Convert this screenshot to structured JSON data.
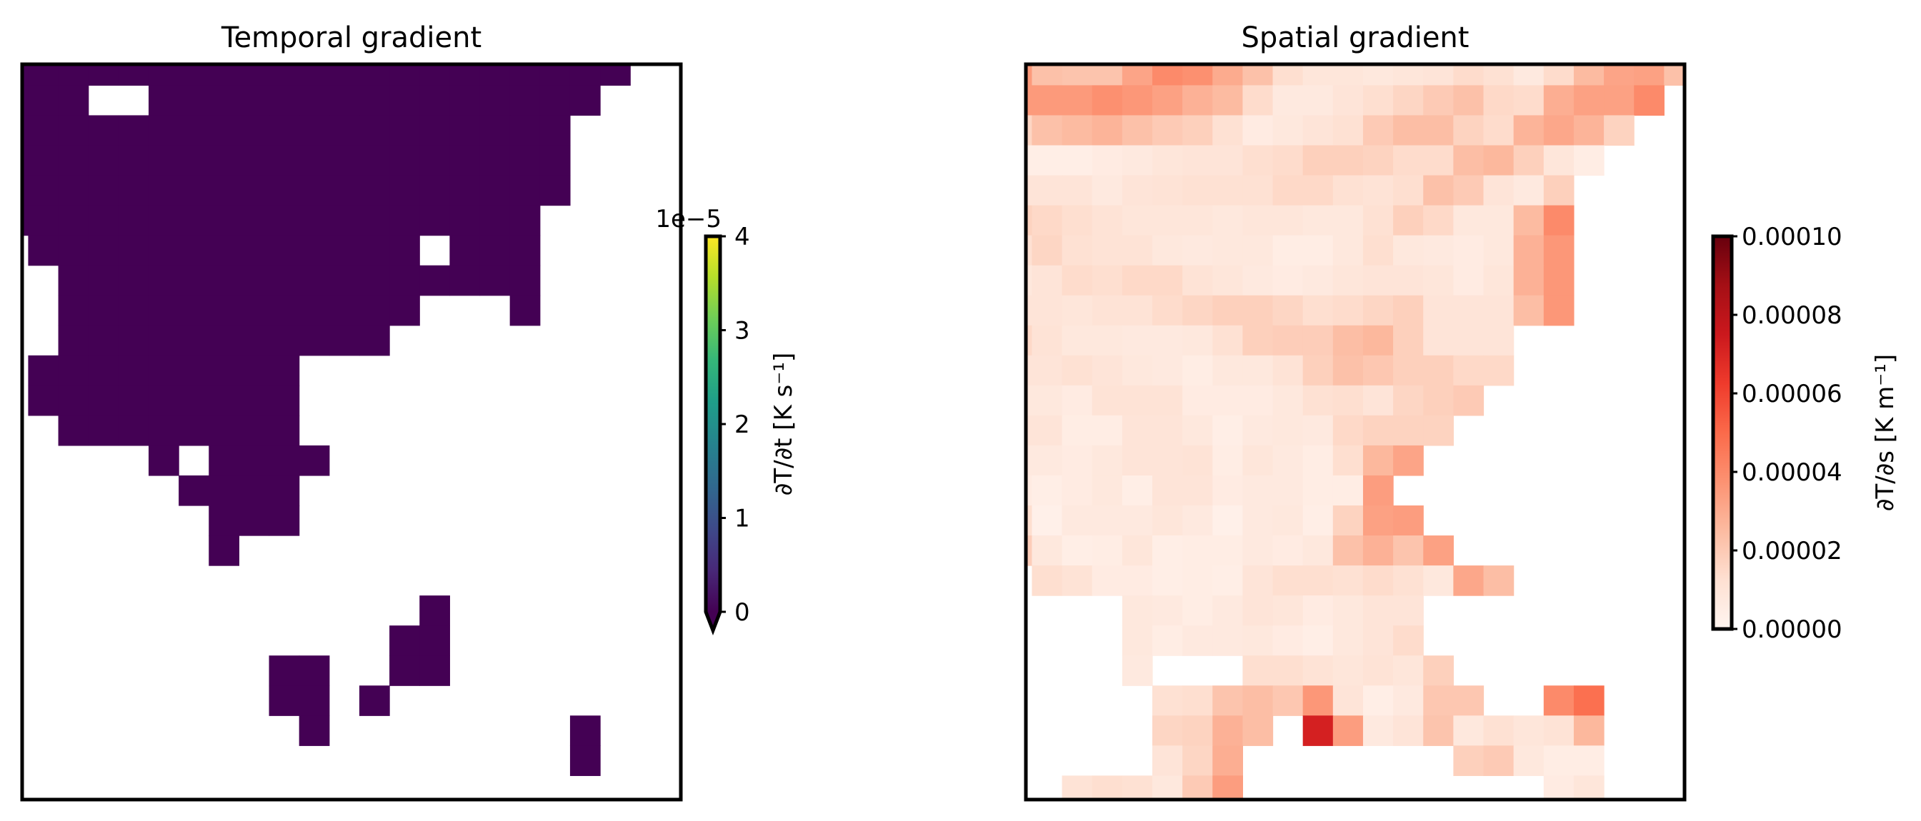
{
  "chart_data": [
    {
      "type": "heatmap",
      "title": "Temporal gradient",
      "colormap": "viridis",
      "colorbar": {
        "label": "∂T/∂t [K s⁻¹]",
        "offset_text": "1e−5",
        "scale": 1e-05,
        "range": [
          0,
          4
        ],
        "ticks": [
          0,
          1,
          2,
          3,
          4
        ],
        "tick_labels": [
          "0",
          "1",
          "2",
          "3",
          "4"
        ],
        "extend": "min"
      },
      "grid_shape": [
        25,
        23
      ],
      "mask_rows": [
        "11111111111111111111100",
        "11100111111111111111000",
        "11111111111111111110000",
        "11111111111111111110000",
        "11111111111111111110000",
        "11111111111111111100000",
        "01111111111111011100000",
        "00111111111111111100000",
        "00111111111111000100000",
        "00111111111110000000000",
        "01111111110000000000000",
        "01111111110000000000000",
        "00111111110000000000000",
        "00000101111000000000000",
        "00000011110000000000000",
        "00000001110000000000000",
        "00000001000000000000000",
        "00000000000000000000000",
        "00000000000000100000000",
        "00000000000001100000000",
        "00000000011001100000000",
        "00000000011010000000000",
        "00000000001000000001000",
        "00000000000000000001000",
        "00000000000000000000000"
      ],
      "cell_value": 0
    },
    {
      "type": "heatmap",
      "title": "Spatial gradient",
      "colormap": "Reds",
      "colorbar": {
        "label": "∂T/∂s [K m⁻¹]",
        "range": [
          0,
          0.0001
        ],
        "ticks": [
          0,
          2e-05,
          4e-05,
          6e-05,
          8e-05,
          0.0001
        ],
        "tick_labels": [
          "0.00000",
          "0.00002",
          "0.00004",
          "0.00006",
          "0.00008",
          "0.00010"
        ]
      },
      "value_scale": 1e-05,
      "grid_shape": [
        25,
        23
      ],
      "values": [
        [
          3.5,
          2.3,
          2.2,
          2.2,
          3.2,
          4.0,
          3.8,
          3.0,
          2.3,
          1.3,
          0.9,
          0.9,
          0.8,
          0.9,
          1.0,
          1.4,
          1.2,
          0.7,
          1.4,
          2.5,
          3.2,
          3.3,
          2.3
        ],
        [
          3.5,
          3.5,
          3.5,
          3.8,
          3.6,
          3.3,
          2.8,
          2.5,
          1.4,
          0.7,
          0.7,
          1.0,
          1.3,
          1.6,
          2.0,
          2.3,
          1.5,
          1.4,
          2.9,
          3.3,
          3.3,
          4.0,
          null
        ],
        [
          1.6,
          2.3,
          2.5,
          2.7,
          2.3,
          2.0,
          1.8,
          1.2,
          0.6,
          0.8,
          1.0,
          1.2,
          2.0,
          2.4,
          2.4,
          1.7,
          1.4,
          2.7,
          3.1,
          2.7,
          1.7,
          null,
          null
        ],
        [
          0.4,
          0.4,
          0.4,
          0.6,
          0.7,
          0.9,
          1.0,
          1.0,
          1.3,
          1.4,
          1.8,
          1.8,
          1.7,
          1.4,
          1.4,
          2.4,
          2.6,
          1.8,
          0.9,
          0.5,
          null,
          null,
          null
        ],
        [
          1.0,
          1.0,
          1.0,
          0.7,
          1.0,
          1.1,
          1.2,
          1.2,
          1.2,
          1.5,
          1.5,
          1.2,
          1.1,
          1.3,
          2.3,
          2.0,
          1.0,
          0.7,
          1.8,
          null,
          null,
          null,
          null
        ],
        [
          1.7,
          1.5,
          1.3,
          1.1,
          0.9,
          0.9,
          0.9,
          0.8,
          0.9,
          0.9,
          0.8,
          0.8,
          1.2,
          1.8,
          1.5,
          0.8,
          0.8,
          2.5,
          4.0,
          null,
          null,
          null,
          null
        ],
        [
          1.2,
          1.6,
          1.2,
          1.1,
          1.1,
          0.8,
          0.7,
          0.8,
          0.8,
          0.5,
          0.5,
          0.8,
          1.3,
          0.8,
          0.7,
          0.6,
          0.8,
          2.8,
          3.6,
          null,
          null,
          null,
          null
        ],
        [
          0.8,
          1.0,
          1.4,
          1.3,
          1.5,
          1.5,
          1.1,
          0.9,
          0.7,
          0.6,
          0.7,
          0.9,
          1.0,
          1.0,
          0.9,
          0.6,
          0.9,
          2.8,
          3.6,
          null,
          null,
          null,
          null
        ],
        [
          1.0,
          1.0,
          0.9,
          1.1,
          1.1,
          1.4,
          1.6,
          1.8,
          1.8,
          1.6,
          1.3,
          1.4,
          1.6,
          1.8,
          1.0,
          1.0,
          1.0,
          2.4,
          3.6,
          null,
          null,
          null,
          null
        ],
        [
          1.5,
          1.1,
          0.8,
          0.8,
          0.7,
          0.7,
          0.8,
          1.2,
          1.8,
          1.9,
          1.9,
          2.4,
          2.6,
          1.8,
          1.0,
          1.0,
          1.0,
          null,
          null,
          null,
          null,
          null,
          null
        ],
        [
          1.0,
          1.0,
          1.2,
          1.0,
          0.8,
          0.7,
          0.5,
          0.8,
          0.8,
          1.1,
          1.8,
          2.3,
          2.1,
          1.8,
          1.8,
          1.5,
          1.5,
          null,
          null,
          null,
          null,
          null,
          null
        ],
        [
          0.8,
          0.8,
          0.6,
          1.1,
          1.1,
          1.1,
          0.6,
          0.6,
          0.6,
          0.8,
          1.2,
          1.3,
          1.0,
          1.6,
          1.8,
          2.0,
          null,
          null,
          null,
          null,
          null,
          null,
          null
        ],
        [
          1.0,
          1.0,
          0.5,
          0.5,
          1.0,
          1.0,
          0.8,
          0.4,
          0.7,
          0.8,
          0.7,
          1.5,
          1.7,
          1.7,
          1.7,
          null,
          null,
          null,
          null,
          null,
          null,
          null,
          null
        ],
        [
          0.7,
          0.7,
          0.6,
          0.8,
          1.0,
          1.0,
          1.1,
          0.5,
          0.9,
          0.7,
          0.5,
          1.3,
          2.6,
          3.2,
          null,
          null,
          null,
          null,
          null,
          null,
          null,
          null,
          null
        ],
        [
          0.6,
          0.4,
          0.6,
          0.8,
          0.4,
          1.0,
          1.0,
          0.6,
          0.7,
          0.7,
          0.5,
          0.5,
          3.4,
          null,
          null,
          null,
          null,
          null,
          null,
          null,
          null,
          null,
          null
        ],
        [
          1.3,
          0.3,
          0.7,
          0.7,
          0.7,
          0.9,
          0.7,
          0.3,
          0.7,
          0.8,
          0.4,
          1.7,
          3.3,
          3.4,
          null,
          null,
          null,
          null,
          null,
          null,
          null,
          null,
          null
        ],
        [
          1.9,
          0.8,
          0.4,
          0.5,
          0.9,
          0.4,
          0.5,
          0.5,
          0.7,
          0.6,
          0.8,
          2.3,
          2.8,
          2.2,
          3.3,
          null,
          null,
          null,
          null,
          null,
          null,
          null,
          null
        ],
        [
          null,
          1.3,
          1.1,
          0.6,
          0.6,
          0.4,
          0.5,
          0.4,
          1.0,
          1.3,
          1.3,
          1.2,
          1.4,
          1.2,
          0.8,
          3.1,
          2.4,
          null,
          null,
          null,
          null,
          null,
          null
        ],
        [
          null,
          null,
          null,
          null,
          0.8,
          0.7,
          0.5,
          0.7,
          1.0,
          0.9,
          0.6,
          0.8,
          1.0,
          1.0,
          null,
          null,
          null,
          null,
          null,
          null,
          null,
          null,
          null
        ],
        [
          null,
          null,
          null,
          null,
          0.8,
          0.5,
          0.7,
          0.7,
          0.8,
          0.6,
          0.4,
          0.8,
          1.0,
          1.4,
          null,
          null,
          null,
          null,
          null,
          null,
          null,
          null,
          null
        ],
        [
          null,
          null,
          null,
          null,
          0.7,
          null,
          null,
          null,
          1.3,
          1.3,
          1.1,
          0.9,
          1.1,
          0.9,
          1.8,
          null,
          null,
          null,
          null,
          null,
          null,
          null,
          null
        ],
        [
          null,
          null,
          null,
          null,
          null,
          1.2,
          1.3,
          2.2,
          2.4,
          2.1,
          3.6,
          1.0,
          0.4,
          0.7,
          2.1,
          2.1,
          null,
          null,
          4.0,
          4.8,
          null,
          null,
          null
        ],
        [
          null,
          null,
          null,
          null,
          null,
          1.6,
          1.7,
          2.8,
          2.4,
          null,
          7.2,
          3.4,
          0.7,
          1.0,
          2.2,
          0.8,
          1.2,
          0.9,
          1.1,
          2.6,
          null,
          null,
          null
        ],
        [
          null,
          null,
          null,
          null,
          null,
          1.0,
          1.6,
          2.9,
          null,
          null,
          null,
          null,
          null,
          null,
          null,
          1.8,
          2.0,
          0.8,
          0.5,
          0.5,
          null,
          null,
          null
        ],
        [
          null,
          null,
          1.1,
          1.3,
          1.2,
          0.8,
          2.0,
          3.4,
          null,
          null,
          null,
          null,
          null,
          null,
          null,
          null,
          null,
          null,
          0.6,
          0.9,
          null,
          null,
          null
        ]
      ]
    }
  ],
  "colors": {
    "viridis_min": "#440154",
    "frame": "#000000"
  }
}
